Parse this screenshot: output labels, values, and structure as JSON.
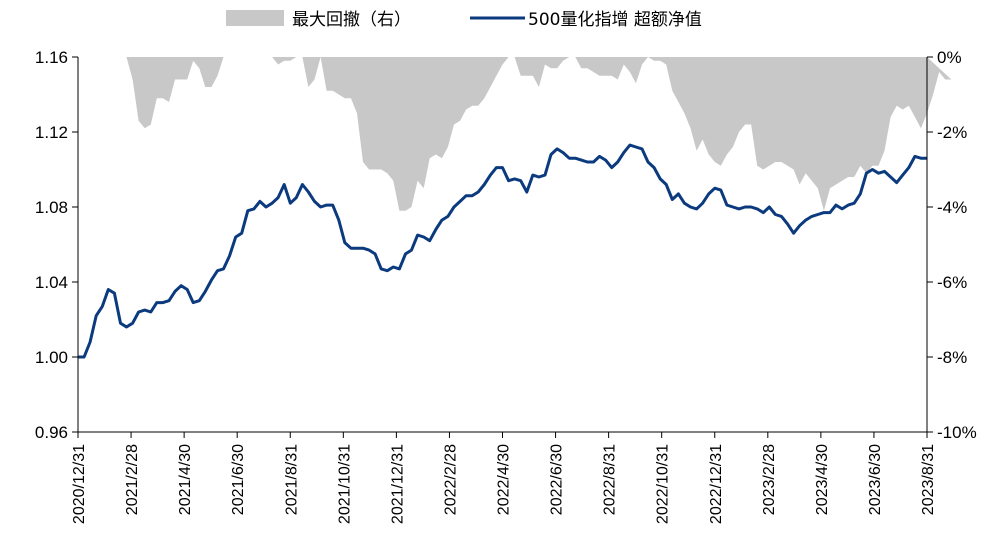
{
  "chart_data": {
    "type": "area+line",
    "legend": {
      "placement": "top-center",
      "entries": [
        "最大回撤（右）",
        "500量化指增 超额净值"
      ]
    },
    "colors": {
      "drawdown": "#c8c8c8",
      "nav": "#0b3a7e",
      "axis": "#000000"
    },
    "y_left": {
      "ylim": [
        0.96,
        1.16
      ],
      "ticks": [
        "0.96",
        "1.00",
        "1.04",
        "1.08",
        "1.12",
        "1.16"
      ]
    },
    "y_right": {
      "ylim": [
        -10,
        0
      ],
      "ticks": [
        "-10%",
        "-8%",
        "-6%",
        "-4%",
        "-2%",
        "0%"
      ]
    },
    "x_ticks": [
      "2020/12/31",
      "2021/2/28",
      "2021/4/30",
      "2021/6/30",
      "2021/8/31",
      "2021/10/31",
      "2021/12/31",
      "2022/2/28",
      "2022/4/30",
      "2022/6/30",
      "2022/8/31",
      "2022/10/31",
      "2022/12/31",
      "2023/2/28",
      "2023/4/30",
      "2023/6/30",
      "2023/8/31"
    ],
    "series": [
      {
        "name": "最大回撤（右）",
        "values": [
          0,
          0,
          0,
          0,
          0,
          0,
          0,
          0,
          0,
          -0.6,
          -1.7,
          -1.9,
          -1.8,
          -1.1,
          -1.1,
          -1.2,
          -0.6,
          -0.6,
          -0.6,
          -0.1,
          -0.3,
          -0.8,
          -0.8,
          -0.5,
          0,
          0,
          0,
          0,
          0,
          0,
          0,
          0,
          0,
          -0.2,
          -0.1,
          -0.1,
          0,
          0,
          -0.8,
          -0.6,
          0,
          -0.9,
          -0.9,
          -1.0,
          -1.1,
          -1.1,
          -1.5,
          -2.8,
          -3.0,
          -3.0,
          -3.0,
          -3.1,
          -3.3,
          -4.1,
          -4.1,
          -4.0,
          -3.3,
          -3.5,
          -2.7,
          -2.6,
          -2.7,
          -2.4,
          -1.8,
          -1.7,
          -1.4,
          -1.3,
          -1.3,
          -1.1,
          -0.8,
          -0.5,
          -0.2,
          0,
          0,
          -0.5,
          -0.5,
          -0.5,
          -0.8,
          -0.2,
          -0.3,
          -0.3,
          -0.1,
          0,
          0,
          -0.3,
          -0.3,
          -0.4,
          -0.5,
          -0.5,
          -0.5,
          -0.6,
          -0.2,
          -0.4,
          -0.7,
          -0.2,
          0,
          -0.1,
          -0.1,
          -0.2,
          -0.9,
          -1.2,
          -1.5,
          -1.9,
          -2.5,
          -2.2,
          -2.6,
          -2.8,
          -2.9,
          -2.6,
          -2.4,
          -2.0,
          -1.8,
          -1.8,
          -2.9,
          -3.0,
          -2.9,
          -2.8,
          -2.8,
          -2.9,
          -3.0,
          -3.4,
          -3.1,
          -3.3,
          -3.5,
          -4.1,
          -3.5,
          -3.4,
          -3.3,
          -3.2,
          -3.2,
          -2.9,
          -3.1,
          -2.9,
          -2.9,
          -2.5,
          -1.6,
          -1.3,
          -1.4,
          -1.3,
          -1.6,
          -1.9,
          -1.5,
          -1.0,
          -0.4,
          -0.6,
          -0.6
        ]
      },
      {
        "name": "500量化指增 超额净值",
        "values": [
          1.0,
          1.0,
          1.008,
          1.022,
          1.027,
          1.036,
          1.034,
          1.018,
          1.016,
          1.018,
          1.024,
          1.025,
          1.024,
          1.029,
          1.029,
          1.03,
          1.035,
          1.038,
          1.036,
          1.029,
          1.03,
          1.035,
          1.041,
          1.046,
          1.047,
          1.054,
          1.064,
          1.066,
          1.078,
          1.079,
          1.083,
          1.08,
          1.082,
          1.085,
          1.092,
          1.082,
          1.085,
          1.092,
          1.088,
          1.083,
          1.08,
          1.081,
          1.081,
          1.073,
          1.061,
          1.058,
          1.058,
          1.058,
          1.057,
          1.055,
          1.047,
          1.046,
          1.048,
          1.047,
          1.055,
          1.057,
          1.065,
          1.064,
          1.062,
          1.068,
          1.073,
          1.075,
          1.08,
          1.083,
          1.086,
          1.086,
          1.088,
          1.092,
          1.097,
          1.101,
          1.101,
          1.094,
          1.095,
          1.094,
          1.088,
          1.097,
          1.096,
          1.097,
          1.108,
          1.111,
          1.109,
          1.106,
          1.106,
          1.105,
          1.104,
          1.104,
          1.107,
          1.105,
          1.101,
          1.104,
          1.109,
          1.113,
          1.112,
          1.111,
          1.104,
          1.101,
          1.095,
          1.092,
          1.084,
          1.087,
          1.082,
          1.08,
          1.079,
          1.082,
          1.087,
          1.09,
          1.089,
          1.081,
          1.08,
          1.079,
          1.08,
          1.08,
          1.079,
          1.077,
          1.08,
          1.076,
          1.075,
          1.071,
          1.066,
          1.07,
          1.073,
          1.075,
          1.076,
          1.077,
          1.077,
          1.081,
          1.079,
          1.081,
          1.082,
          1.087,
          1.098,
          1.1,
          1.098,
          1.099,
          1.096,
          1.093,
          1.097,
          1.101,
          1.107,
          1.106,
          1.106
        ]
      }
    ]
  }
}
